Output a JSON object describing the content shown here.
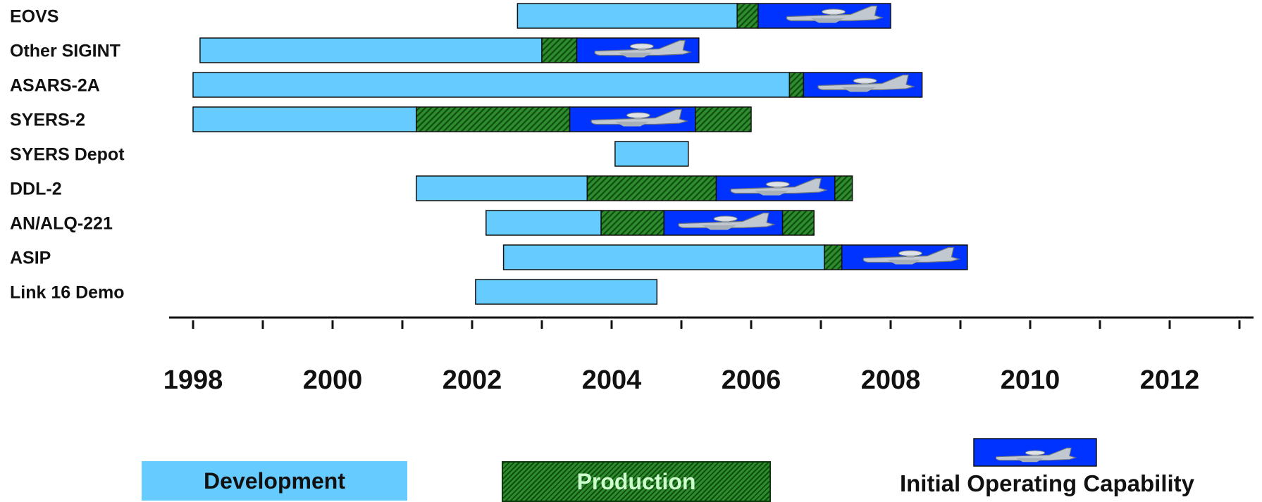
{
  "chart_data": {
    "type": "gantt",
    "x_range": [
      1998,
      2013
    ],
    "ticks": [
      "1998",
      "2000",
      "2002",
      "2004",
      "2006",
      "2008",
      "2010",
      "2012"
    ],
    "phase_colors": {
      "development": "#66ccff",
      "production": "#1e6e1e",
      "ioc": "#0033ff"
    },
    "rows": [
      {
        "label": "EOVS",
        "segments": [
          {
            "phase": "development",
            "start": 2002.65,
            "end": 2005.8
          },
          {
            "phase": "production",
            "start": 2005.8,
            "end": 2006.1
          },
          {
            "phase": "ioc",
            "start": 2006.1,
            "end": 2008.0
          }
        ]
      },
      {
        "label": "Other SIGINT",
        "segments": [
          {
            "phase": "development",
            "start": 1998.1,
            "end": 2003.0
          },
          {
            "phase": "production",
            "start": 2003.0,
            "end": 2003.5
          },
          {
            "phase": "ioc",
            "start": 2003.5,
            "end": 2005.25
          }
        ]
      },
      {
        "label": "ASARS-2A",
        "segments": [
          {
            "phase": "development",
            "start": 1998.0,
            "end": 2006.55
          },
          {
            "phase": "production",
            "start": 2006.55,
            "end": 2006.75
          },
          {
            "phase": "ioc",
            "start": 2006.75,
            "end": 2008.45
          }
        ]
      },
      {
        "label": "SYERS-2",
        "segments": [
          {
            "phase": "development",
            "start": 1998.0,
            "end": 2001.2
          },
          {
            "phase": "production",
            "start": 2001.2,
            "end": 2003.4
          },
          {
            "phase": "ioc",
            "start": 2003.4,
            "end": 2005.2
          },
          {
            "phase": "production",
            "start": 2005.2,
            "end": 2006.0
          }
        ]
      },
      {
        "label": "SYERS Depot",
        "segments": [
          {
            "phase": "development",
            "start": 2004.05,
            "end": 2005.1
          }
        ]
      },
      {
        "label": "DDL-2",
        "segments": [
          {
            "phase": "development",
            "start": 2001.2,
            "end": 2003.65
          },
          {
            "phase": "production",
            "start": 2003.65,
            "end": 2005.5
          },
          {
            "phase": "ioc",
            "start": 2005.5,
            "end": 2007.2
          },
          {
            "phase": "production",
            "start": 2007.2,
            "end": 2007.45
          }
        ]
      },
      {
        "label": "AN/ALQ-221",
        "segments": [
          {
            "phase": "development",
            "start": 2002.2,
            "end": 2003.85
          },
          {
            "phase": "production",
            "start": 2003.85,
            "end": 2004.75
          },
          {
            "phase": "ioc",
            "start": 2004.75,
            "end": 2006.45
          },
          {
            "phase": "production",
            "start": 2006.45,
            "end": 2006.9
          }
        ]
      },
      {
        "label": "ASIP",
        "segments": [
          {
            "phase": "development",
            "start": 2002.45,
            "end": 2007.05
          },
          {
            "phase": "production",
            "start": 2007.05,
            "end": 2007.3
          },
          {
            "phase": "ioc",
            "start": 2007.3,
            "end": 2009.1
          }
        ]
      },
      {
        "label": "Link 16 Demo",
        "segments": [
          {
            "phase": "development",
            "start": 2002.05,
            "end": 2004.65
          }
        ]
      }
    ]
  },
  "legend": {
    "development": "Development",
    "production": "Production",
    "ioc": "Initial Operating Capability"
  }
}
